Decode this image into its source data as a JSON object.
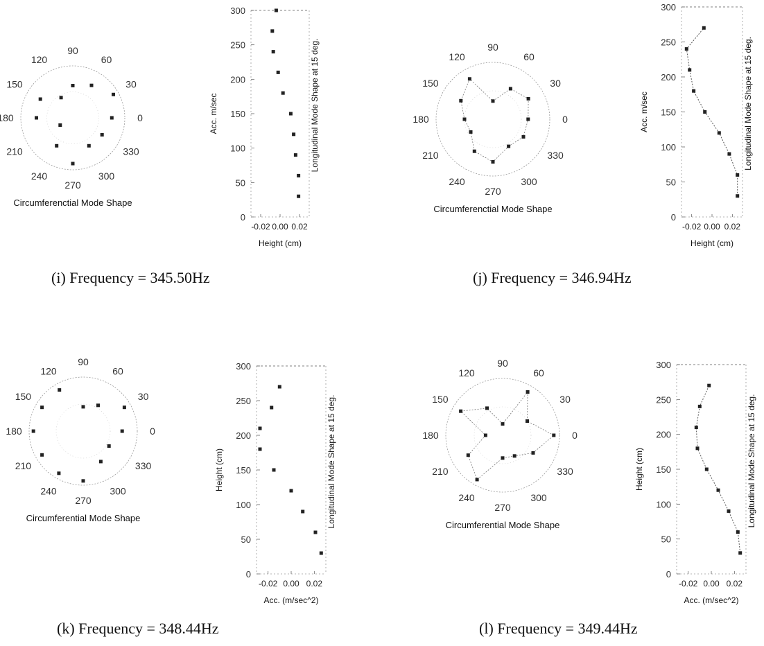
{
  "figure": {
    "panels": [
      {
        "caption": "(i) Frequency = 345.50Hz",
        "polar_title": "Circumferenctial Mode Shape",
        "polar_angle_labels": [
          "90",
          "60",
          "30",
          "0",
          "330",
          "300",
          "270",
          "240",
          "210",
          "180",
          "150",
          "120"
        ],
        "long_xlabel": "Height (cm)",
        "long_ylabel": "Acc. m/sec",
        "long_title": "Longitudinal Mode Shape at 15 deg.",
        "long_yticks": [
          "300",
          "250",
          "200",
          "150",
          "100",
          "50",
          "0"
        ],
        "long_xticks": [
          "-0.02",
          "0.00",
          "0.02"
        ]
      },
      {
        "caption": "(j) Frequency = 346.94Hz",
        "polar_title": "Circumferenctial Mode Shape",
        "polar_angle_labels": [
          "90",
          "60",
          "30",
          "0",
          "330",
          "300",
          "270",
          "240",
          "210",
          "180",
          "150",
          "120"
        ],
        "long_xlabel": "Height (cm)",
        "long_ylabel": "Acc. m/sec",
        "long_title": "Longitudinal Mode Shape at 15 deg.",
        "long_yticks": [
          "300",
          "250",
          "200",
          "150",
          "100",
          "50",
          "0"
        ],
        "long_xticks": [
          "-0.02",
          "0.00",
          "0.02"
        ]
      },
      {
        "caption": "(k) Frequency = 348.44Hz",
        "polar_title": "Circumferential Mode Shape",
        "polar_angle_labels": [
          "90",
          "60",
          "30",
          "0",
          "330",
          "300",
          "270",
          "240",
          "210",
          "180",
          "150",
          "120"
        ],
        "long_xlabel": "Acc. (m/sec^2)",
        "long_ylabel": "Height (cm)",
        "long_title": "Longitudinal Mode Shape at 15 deg.",
        "long_yticks": [
          "300",
          "250",
          "200",
          "150",
          "100",
          "50",
          "0"
        ],
        "long_xticks": [
          "-0.02",
          "0.00",
          "0.02"
        ]
      },
      {
        "caption": "(l) Frequency = 349.44Hz",
        "polar_title": "Circumferential Mode Shape",
        "polar_angle_labels": [
          "90",
          "60",
          "30",
          "0",
          "330",
          "300",
          "270",
          "240",
          "210",
          "180",
          "150",
          "120"
        ],
        "long_xlabel": "Acc. (m/sec^2)",
        "long_ylabel": "Height (cm)",
        "long_title": "Longitudinal Mode Shape at 15 deg.",
        "long_yticks": [
          "300",
          "250",
          "200",
          "150",
          "100",
          "50",
          "0"
        ],
        "long_xticks": [
          "-0.02",
          "0.00",
          "0.02"
        ]
      }
    ]
  },
  "chart_data": [
    {
      "type": "scatter",
      "subtype": "polar",
      "title": "Circumferenctial Mode Shape",
      "theta_deg": [
        0,
        30,
        60,
        90,
        120,
        150,
        180,
        210,
        240,
        270,
        300,
        330
      ],
      "r": [
        0.75,
        0.9,
        0.72,
        0.62,
        0.45,
        0.72,
        0.7,
        0.28,
        0.62,
        0.88,
        0.62,
        0.65
      ]
    },
    {
      "type": "scatter",
      "title": "Longitudinal Mode Shape at 15 deg.",
      "xlabel": "Height (cm)",
      "ylabel": "Acc. m/sec",
      "xlim": [
        -0.03,
        0.03
      ],
      "ylim": [
        0,
        300
      ],
      "x": [
        0.019,
        0.019,
        0.016,
        0.014,
        0.011,
        0.003,
        -0.002,
        -0.007,
        -0.008,
        -0.004
      ],
      "y": [
        30,
        60,
        90,
        120,
        150,
        180,
        210,
        240,
        270,
        300
      ]
    },
    {
      "type": "scatter",
      "subtype": "polar",
      "title": "Circumferenctial Mode Shape",
      "theta_deg": [
        0,
        30,
        60,
        90,
        120,
        150,
        180,
        210,
        240,
        270,
        300,
        330
      ],
      "r": [
        0.62,
        0.72,
        0.62,
        0.32,
        0.82,
        0.65,
        0.5,
        0.45,
        0.65,
        0.75,
        0.55,
        0.62
      ],
      "connected": true
    },
    {
      "type": "line",
      "title": "Longitudinal Mode Shape at 15 deg.",
      "xlabel": "Height (cm)",
      "ylabel": "Acc. m/sec",
      "xlim": [
        -0.03,
        0.03
      ],
      "ylim": [
        0,
        300
      ],
      "x": [
        0.025,
        0.025,
        0.017,
        0.007,
        -0.007,
        -0.018,
        -0.022,
        -0.025,
        -0.008
      ],
      "y": [
        30,
        60,
        90,
        120,
        150,
        180,
        210,
        240,
        270
      ]
    },
    {
      "type": "scatter",
      "subtype": "polar",
      "title": "Circumferential Mode Shape",
      "theta_deg": [
        0,
        30,
        60,
        90,
        120,
        150,
        180,
        210,
        240,
        270,
        300,
        330
      ],
      "r": [
        0.72,
        0.88,
        0.55,
        0.45,
        0.88,
        0.88,
        0.92,
        0.88,
        0.9,
        0.92,
        0.65,
        0.55
      ]
    },
    {
      "type": "scatter",
      "title": "Longitudinal Mode Shape at 15 deg.",
      "xlabel": "Acc. (m/sec^2)",
      "ylabel": "Height (cm)",
      "xlim": [
        -0.03,
        0.03
      ],
      "ylim": [
        0,
        300
      ],
      "x": [
        0.026,
        0.021,
        0.01,
        0.0,
        -0.015,
        -0.027,
        -0.027,
        -0.017,
        -0.01
      ],
      "y": [
        30,
        60,
        90,
        120,
        150,
        180,
        210,
        240,
        270
      ]
    },
    {
      "type": "scatter",
      "subtype": "polar",
      "title": "Circumferential Mode Shape",
      "theta_deg": [
        0,
        30,
        60,
        90,
        120,
        150,
        180,
        210,
        240,
        270,
        300,
        330
      ],
      "r": [
        0.9,
        0.5,
        0.88,
        0.2,
        0.55,
        0.85,
        0.3,
        0.7,
        0.9,
        0.4,
        0.42,
        0.62
      ],
      "connected": true
    },
    {
      "type": "line",
      "title": "Longitudinal Mode Shape at 15 deg.",
      "xlabel": "Acc. (m/sec^2)",
      "ylabel": "Height (cm)",
      "xlim": [
        -0.03,
        0.03
      ],
      "ylim": [
        0,
        300
      ],
      "x": [
        0.025,
        0.023,
        0.015,
        0.006,
        -0.004,
        -0.012,
        -0.013,
        -0.01,
        -0.002
      ],
      "y": [
        30,
        60,
        90,
        120,
        150,
        180,
        210,
        240,
        270
      ]
    }
  ]
}
